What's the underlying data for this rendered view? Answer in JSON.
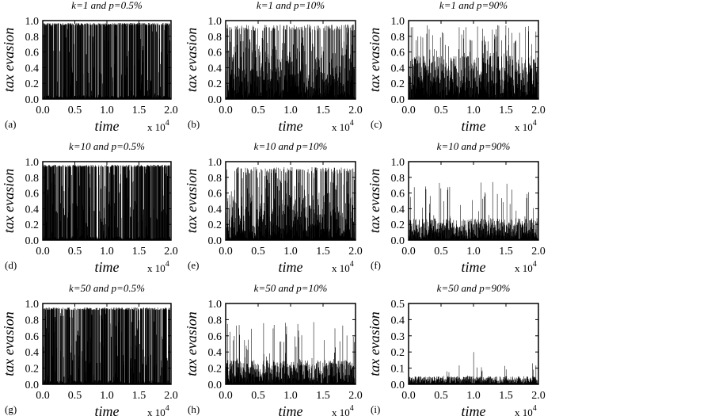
{
  "figure": {
    "panels": [
      {
        "label": "(a)",
        "title": "k=1 and p=0.5%",
        "ylim": [
          0,
          1.0
        ],
        "yticks": [
          "0.0",
          "0.2",
          "0.4",
          "0.6",
          "0.8",
          "1.0"
        ],
        "density": 1.0,
        "peak": 0.97,
        "pattern": "bimodal",
        "seed": 11
      },
      {
        "label": "(b)",
        "title": "k=1 and p=10%",
        "ylim": [
          0,
          1.0
        ],
        "yticks": [
          "0.0",
          "0.2",
          "0.4",
          "0.6",
          "0.8",
          "1.0"
        ],
        "density": 1.0,
        "peak": 0.95,
        "pattern": "dense",
        "seed": 12
      },
      {
        "label": "(c)",
        "title": "k=1 and p=90%",
        "ylim": [
          0,
          1.0
        ],
        "yticks": [
          "0.0",
          "0.2",
          "0.4",
          "0.6",
          "0.8",
          "1.0"
        ],
        "density": 1.0,
        "peak": 0.95,
        "pattern": "spiky",
        "seed": 13
      },
      {
        "label": "(d)",
        "title": "k=10 and p=0.5%",
        "ylim": [
          0,
          1.0
        ],
        "yticks": [
          "0.0",
          "0.2",
          "0.4",
          "0.6",
          "0.8",
          "1.0"
        ],
        "density": 1.0,
        "peak": 0.96,
        "pattern": "bimodal",
        "seed": 21
      },
      {
        "label": "(e)",
        "title": "k=10 and p=10%",
        "ylim": [
          0,
          1.0
        ],
        "yticks": [
          "0.0",
          "0.2",
          "0.4",
          "0.6",
          "0.8",
          "1.0"
        ],
        "density": 1.0,
        "peak": 0.93,
        "pattern": "dense",
        "seed": 22
      },
      {
        "label": "(f)",
        "title": "k=10 and p=90%",
        "ylim": [
          0,
          1.0
        ],
        "yticks": [
          "0.0",
          "0.2",
          "0.4",
          "0.6",
          "0.8",
          "1.0"
        ],
        "density": 1.0,
        "peak": 0.74,
        "pattern": "low",
        "seed": 23
      },
      {
        "label": "(g)",
        "title": "k=50 and p=0.5%",
        "ylim": [
          0,
          1.0
        ],
        "yticks": [
          "0.0",
          "0.2",
          "0.4",
          "0.6",
          "0.8",
          "1.0"
        ],
        "density": 1.0,
        "peak": 0.95,
        "pattern": "bimodal",
        "seed": 31
      },
      {
        "label": "(h)",
        "title": "k=50 and p=10%",
        "ylim": [
          0,
          1.0
        ],
        "yticks": [
          "0.0",
          "0.2",
          "0.4",
          "0.6",
          "0.8",
          "1.0"
        ],
        "density": 1.0,
        "peak": 0.77,
        "pattern": "sparse",
        "seed": 32
      },
      {
        "label": "(i)",
        "title": "k=50 and p=90%",
        "ylim": [
          0,
          0.5
        ],
        "yticks": [
          "0.0",
          "0.1",
          "0.2",
          "0.3",
          "0.4",
          "0.5"
        ],
        "density": 1.0,
        "peak": 0.2,
        "pattern": "flat",
        "seed": 33
      }
    ],
    "xticks": [
      "0.0",
      "0.5",
      "1.0",
      "1.5",
      "2.0"
    ],
    "xlabel": "time",
    "ylabel": "tax evasion",
    "x_scale_text": "x 10",
    "x_scale_exp": "4"
  },
  "chart_data": [
    {
      "type": "line",
      "title": "k=1 and p=0.5%",
      "xlabel": "time",
      "ylabel": "tax evasion",
      "xlim": [
        0,
        20000
      ],
      "ylim": [
        0,
        1.0
      ],
      "series": [
        {
          "description_values": {
            "min": 0.0,
            "max": 0.97
          }
        }
      ]
    },
    {
      "type": "line",
      "title": "k=1 and p=10%",
      "xlabel": "time",
      "ylabel": "tax evasion",
      "xlim": [
        0,
        20000
      ],
      "ylim": [
        0,
        1.0
      ],
      "series": [
        {
          "description_values": {
            "min": 0.0,
            "max": 0.95
          }
        }
      ]
    },
    {
      "type": "line",
      "title": "k=1 and p=90%",
      "xlabel": "time",
      "ylabel": "tax evasion",
      "xlim": [
        0,
        20000
      ],
      "ylim": [
        0,
        1.0
      ],
      "series": [
        {
          "description_values": {
            "min": 0.0,
            "max": 0.95
          }
        }
      ]
    },
    {
      "type": "line",
      "title": "k=10 and p=0.5%",
      "xlabel": "time",
      "ylabel": "tax evasion",
      "xlim": [
        0,
        20000
      ],
      "ylim": [
        0,
        1.0
      ],
      "series": [
        {
          "description_values": {
            "min": 0.0,
            "max": 0.96
          }
        }
      ]
    },
    {
      "type": "line",
      "title": "k=10 and p=10%",
      "xlabel": "time",
      "ylabel": "tax evasion",
      "xlim": [
        0,
        20000
      ],
      "ylim": [
        0,
        1.0
      ],
      "series": [
        {
          "description_values": {
            "min": 0.0,
            "max": 0.93
          }
        }
      ]
    },
    {
      "type": "line",
      "title": "k=10 and p=90%",
      "xlabel": "time",
      "ylabel": "tax evasion",
      "xlim": [
        0,
        20000
      ],
      "ylim": [
        0,
        1.0
      ],
      "series": [
        {
          "description_values": {
            "min": 0.0,
            "max": 0.74
          }
        }
      ]
    },
    {
      "type": "line",
      "title": "k=50 and p=0.5%",
      "xlabel": "time",
      "ylabel": "tax evasion",
      "xlim": [
        0,
        20000
      ],
      "ylim": [
        0,
        1.0
      ],
      "series": [
        {
          "description_values": {
            "min": 0.0,
            "max": 0.95
          }
        }
      ]
    },
    {
      "type": "line",
      "title": "k=50 and p=10%",
      "xlabel": "time",
      "ylabel": "tax evasion",
      "xlim": [
        0,
        20000
      ],
      "ylim": [
        0,
        1.0
      ],
      "series": [
        {
          "description_values": {
            "min": 0.0,
            "max": 0.77
          }
        }
      ]
    },
    {
      "type": "line",
      "title": "k=50 and p=90%",
      "xlabel": "time",
      "ylabel": "tax evasion",
      "xlim": [
        0,
        20000
      ],
      "ylim": [
        0,
        0.5
      ],
      "series": [
        {
          "description_values": {
            "min": 0.0,
            "max": 0.2
          }
        }
      ]
    }
  ]
}
